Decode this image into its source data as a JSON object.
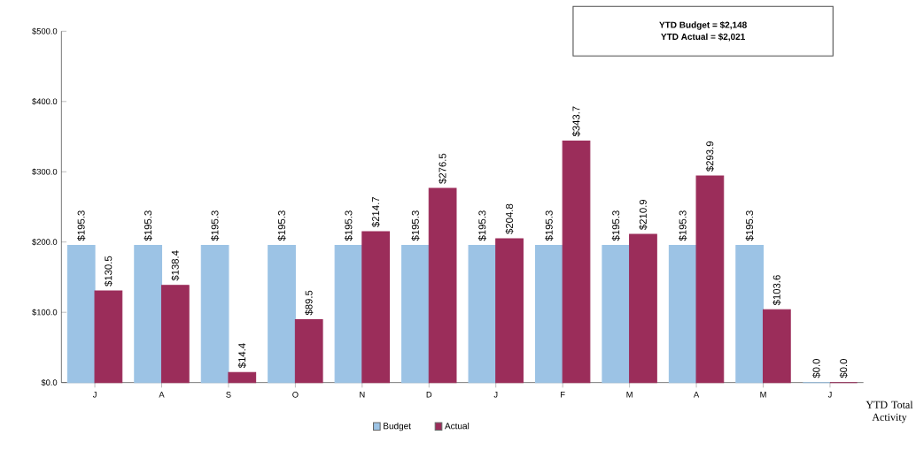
{
  "chart_data": {
    "type": "bar",
    "categories": [
      "J",
      "A",
      "S",
      "O",
      "N",
      "D",
      "J",
      "F",
      "M",
      "A",
      "M",
      "J"
    ],
    "series": [
      {
        "name": "Budget",
        "color": "#9cc3e5",
        "values": [
          195.3,
          195.3,
          195.3,
          195.3,
          195.3,
          195.3,
          195.3,
          195.3,
          195.3,
          195.3,
          195.3,
          0
        ],
        "value_labels": [
          "$195.3",
          "$195.3",
          "$195.3",
          "$195.3",
          "$195.3",
          "$195.3",
          "$195.3",
          "$195.3",
          "$195.3",
          "$195.3",
          "$195.3",
          "$0.0"
        ]
      },
      {
        "name": "Actual",
        "color": "#9b2d5a",
        "values": [
          130.5,
          138.4,
          14.4,
          89.5,
          214.7,
          276.5,
          204.8,
          343.7,
          210.9,
          293.9,
          103.6,
          0
        ],
        "value_labels": [
          "$130.5",
          "$138.4",
          "$14.4",
          "$89.5",
          "$214.7",
          "$276.5",
          "$204.8",
          "$343.7",
          "$210.9",
          "$293.9",
          "$103.6",
          "$0.0"
        ]
      }
    ],
    "ylim": [
      0,
      500
    ],
    "yticks": [
      {
        "value": 0,
        "label": "$0.0"
      },
      {
        "value": 100,
        "label": "$100.0"
      },
      {
        "value": 200,
        "label": "$200.0"
      },
      {
        "value": 300,
        "label": "$300.0"
      },
      {
        "value": 400,
        "label": "$400.0"
      },
      {
        "value": 500,
        "label": "$500.0"
      }
    ],
    "grid": false,
    "legend": "bottom",
    "annotations": [
      "YTD Budget = $2,148",
      "YTD Actual  = $2,021",
      "YTD Total Activity"
    ]
  }
}
